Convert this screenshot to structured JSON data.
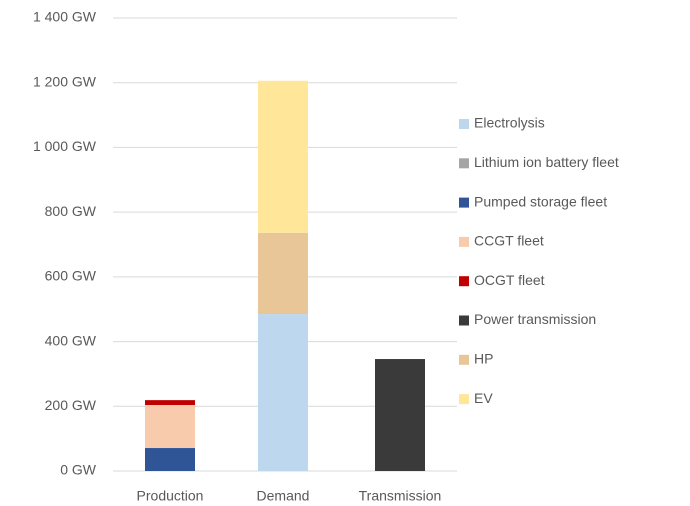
{
  "chart_data": {
    "type": "stacked_bar",
    "categories": [
      "Production",
      "Demand",
      "Transmission"
    ],
    "series": [
      {
        "name": "Electrolysis",
        "color": "#bdd7ee",
        "values": [
          0,
          485,
          0
        ]
      },
      {
        "name": "Lithium ion battery fleet",
        "color": "#a5a5a5",
        "values": [
          0,
          0,
          0
        ]
      },
      {
        "name": "Pumped storage fleet",
        "color": "#2f5597",
        "values": [
          71,
          0,
          0
        ]
      },
      {
        "name": "CCGT fleet",
        "color": "#f8cbad",
        "values": [
          133,
          0,
          0
        ]
      },
      {
        "name": "OCGT fleet",
        "color": "#c00000",
        "values": [
          15,
          0,
          0
        ]
      },
      {
        "name": "Power transmission",
        "color": "#3a3a3a",
        "values": [
          0,
          0,
          346
        ]
      },
      {
        "name": "HP",
        "color": "#e9c697",
        "values": [
          0,
          251,
          0
        ]
      },
      {
        "name": "EV",
        "color": "#ffe699",
        "values": [
          0,
          470,
          0
        ]
      }
    ],
    "ylim": [
      0,
      1400
    ],
    "yticks": [
      {
        "value": 0,
        "label": "0 GW"
      },
      {
        "value": 200,
        "label": "200 GW"
      },
      {
        "value": 400,
        "label": "400 GW"
      },
      {
        "value": 600,
        "label": "600 GW"
      },
      {
        "value": 800,
        "label": "800 GW"
      },
      {
        "value": 1000,
        "label": "1 000 GW"
      },
      {
        "value": 1200,
        "label": "1 200 GW"
      },
      {
        "value": 1400,
        "label": "1 400 GW"
      }
    ],
    "grid": true,
    "legend": "right"
  }
}
